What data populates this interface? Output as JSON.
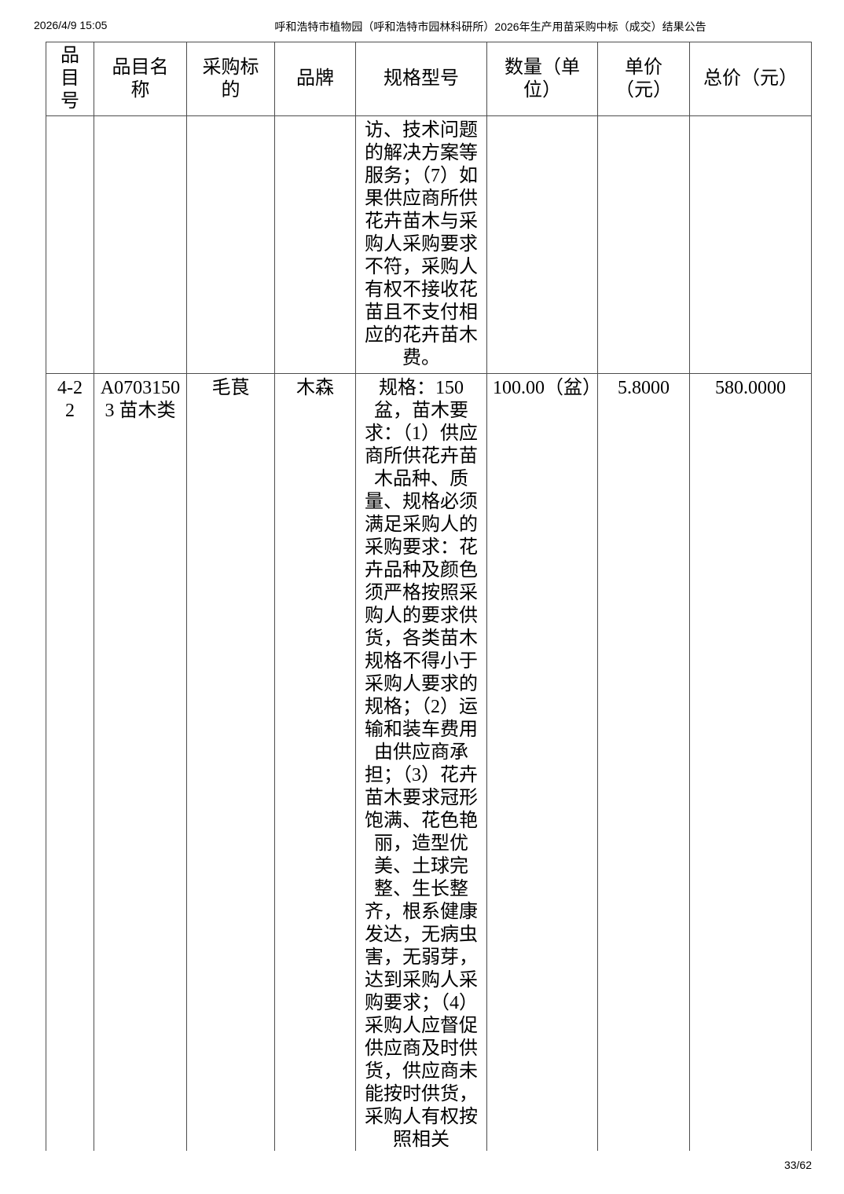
{
  "print_header": {
    "timestamp": "2026/4/9 15:05",
    "title": "呼和浩特市植物园（呼和浩特市园林科研所）2026年生产用苗采购中标（成交）结果公告"
  },
  "print_footer": {
    "page_indicator": "33/62"
  },
  "results_table": {
    "columns": [
      "品目号",
      "品目名称",
      "采购标的",
      "品牌",
      "规格型号",
      "数量（单位）",
      "单价（元）",
      "总价（元）"
    ],
    "rows": [
      {
        "item_no": "",
        "item_name": "",
        "procurement_subject": "",
        "brand": "",
        "spec_model": "访、技术问题的解决方案等服务；（7）如果供应商所供花卉苗木与采购人采购要求不符，采购人有权不接收花苗且不支付相应的花卉苗木费。",
        "quantity_unit": "",
        "unit_price_yuan": "",
        "total_price_yuan": ""
      },
      {
        "item_no": "4-22",
        "item_name": "A07031503 苗木类",
        "procurement_subject": "毛茛",
        "brand": "木森",
        "spec_model": "规格：150盆，苗木要求：（1）供应商所供花卉苗木品种、质量、规格必须满足采购人的采购要求：花卉品种及颜色须严格按照采购人的要求供货，各类苗木规格不得小于采购人要求的规格；（2）运输和装车费用由供应商承担；（3）花卉苗木要求冠形饱满、花色艳丽，造型优美、土球完整、生长整齐，根系健康发达，无病虫害，无弱芽，达到采购人采购要求；（4）采购人应督促供应商及时供货，供应商未能按时供货，采购人有权按照相关",
        "quantity_unit": "100.00（盆）",
        "unit_price_yuan": "5.8000",
        "total_price_yuan": "580.0000"
      }
    ]
  }
}
